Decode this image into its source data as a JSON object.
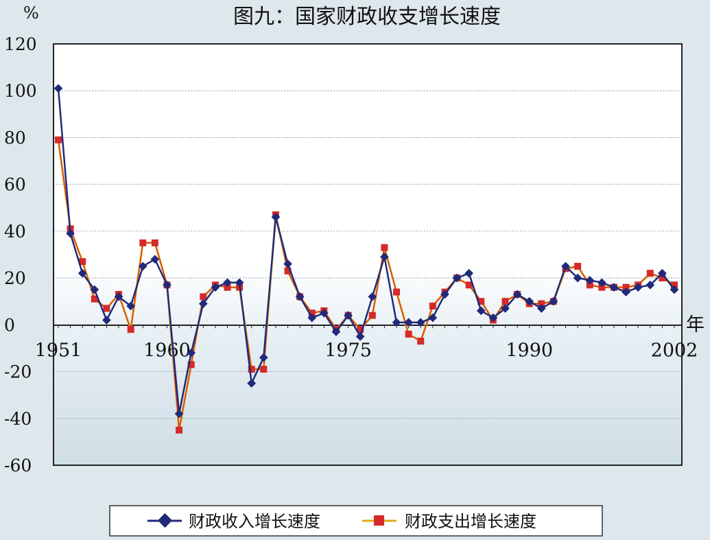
{
  "chart_data": {
    "type": "line",
    "title": "图九：国家财政收支增长速度",
    "ylabel": "%",
    "xlabel": "年",
    "ylim": [
      -60,
      120
    ],
    "yticks": [
      120,
      100,
      80,
      60,
      40,
      20,
      0,
      -20,
      -40,
      -60
    ],
    "x_tick_labels": [
      1951,
      1960,
      1975,
      1990,
      2002
    ],
    "grid": true,
    "legend_position": "bottom",
    "x": [
      1951,
      1952,
      1953,
      1954,
      1955,
      1956,
      1957,
      1958,
      1959,
      1960,
      1961,
      1962,
      1963,
      1964,
      1965,
      1966,
      1967,
      1968,
      1969,
      1970,
      1971,
      1972,
      1973,
      1974,
      1975,
      1976,
      1977,
      1978,
      1979,
      1980,
      1981,
      1982,
      1983,
      1984,
      1985,
      1986,
      1987,
      1988,
      1989,
      1990,
      1991,
      1992,
      1993,
      1994,
      1995,
      1996,
      1997,
      1998,
      1999,
      2000,
      2001,
      2002
    ],
    "series": [
      {
        "name": "财政收入增长速度",
        "color": "#1f2a7a",
        "marker": "diamond",
        "values": [
          101,
          39,
          22,
          15,
          2,
          12,
          8,
          25,
          28,
          17,
          -38,
          -12,
          9,
          16,
          18,
          18,
          -25,
          -14,
          46,
          26,
          12,
          3,
          5,
          -3,
          4,
          -5,
          12,
          29,
          1,
          1,
          1,
          3,
          13,
          20,
          22,
          6,
          3,
          7,
          13,
          10,
          7,
          10,
          25,
          20,
          19,
          18,
          16,
          14,
          16,
          17,
          22,
          15
        ]
      },
      {
        "name": "财政支出增长速度",
        "color": "#d42a2a",
        "marker": "square",
        "values": [
          79,
          41,
          27,
          11,
          7,
          13,
          -2,
          35,
          35,
          17,
          -45,
          -17,
          12,
          17,
          16,
          16,
          -19,
          -19,
          47,
          23,
          12,
          5,
          6,
          -2,
          4,
          -2,
          4,
          33,
          14,
          -4,
          -7,
          8,
          14,
          20,
          17,
          10,
          2,
          10,
          13,
          9,
          9,
          10,
          24,
          25,
          17,
          16,
          16,
          16,
          17,
          22,
          20,
          17
        ]
      }
    ]
  }
}
